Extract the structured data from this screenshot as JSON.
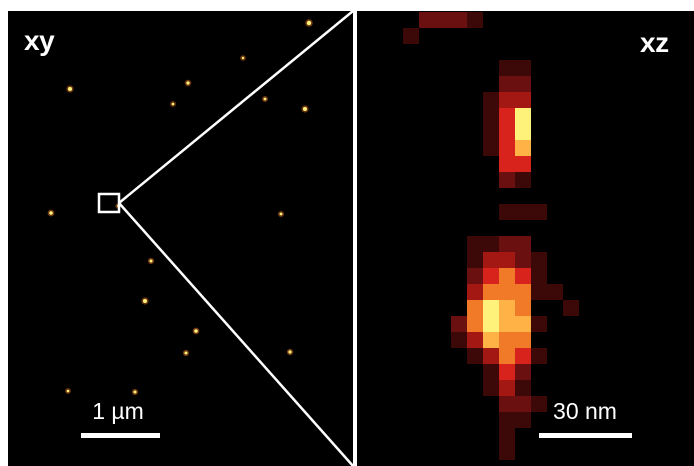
{
  "figure": {
    "left_panel": {
      "label": "xy",
      "scalebar_label": "1 µm"
    },
    "right_panel": {
      "label": "xz",
      "scalebar_label": "30 nm"
    },
    "colormap": "hot",
    "colors": {
      "background": "#000000",
      "annotation": "#ffffff",
      "hot_dark": "#5a0f0f",
      "hot_red": "#d8231c",
      "hot_orange": "#f07a28",
      "hot_yellow": "#fff27a"
    }
  }
}
